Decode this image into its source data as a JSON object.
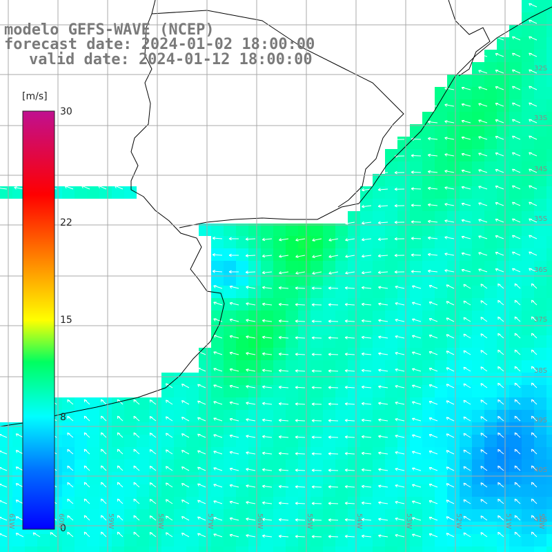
{
  "title": {
    "line1": "modelo GEFS-WAVE (NCEP)",
    "line2": "forecast date: 2024-01-02 18:00:00",
    "line3": "valid date: 2024-01-12 18:00:00"
  },
  "colorbar": {
    "unit": "[m/s]",
    "min": 0,
    "max": 30,
    "ticks": [
      "30",
      "22",
      "15",
      "8",
      "0"
    ],
    "tick_values": [
      30,
      22,
      15,
      8,
      0
    ],
    "colors": [
      "#0000ff",
      "#00aaff",
      "#00ffff",
      "#00ff00",
      "#ffff00",
      "#ff8800",
      "#ff0000",
      "#c01090"
    ]
  },
  "map": {
    "land_color": "#ffffff",
    "grid_color": "#a8a8a8",
    "coast_color": "#000000",
    "arrow_color": "#ffffff",
    "lat_labels": [
      "32S",
      "33S",
      "34S",
      "35S",
      "36S",
      "37S",
      "38S",
      "39S",
      "40S",
      "41S"
    ],
    "lon_labels": [
      "61W",
      "60W",
      "59W",
      "58W",
      "57W",
      "56W",
      "55W",
      "54W",
      "53W",
      "52W",
      "51W",
      "50W"
    ],
    "wind_direction": "from east / north-east, arrows pointing west / south-west"
  }
}
